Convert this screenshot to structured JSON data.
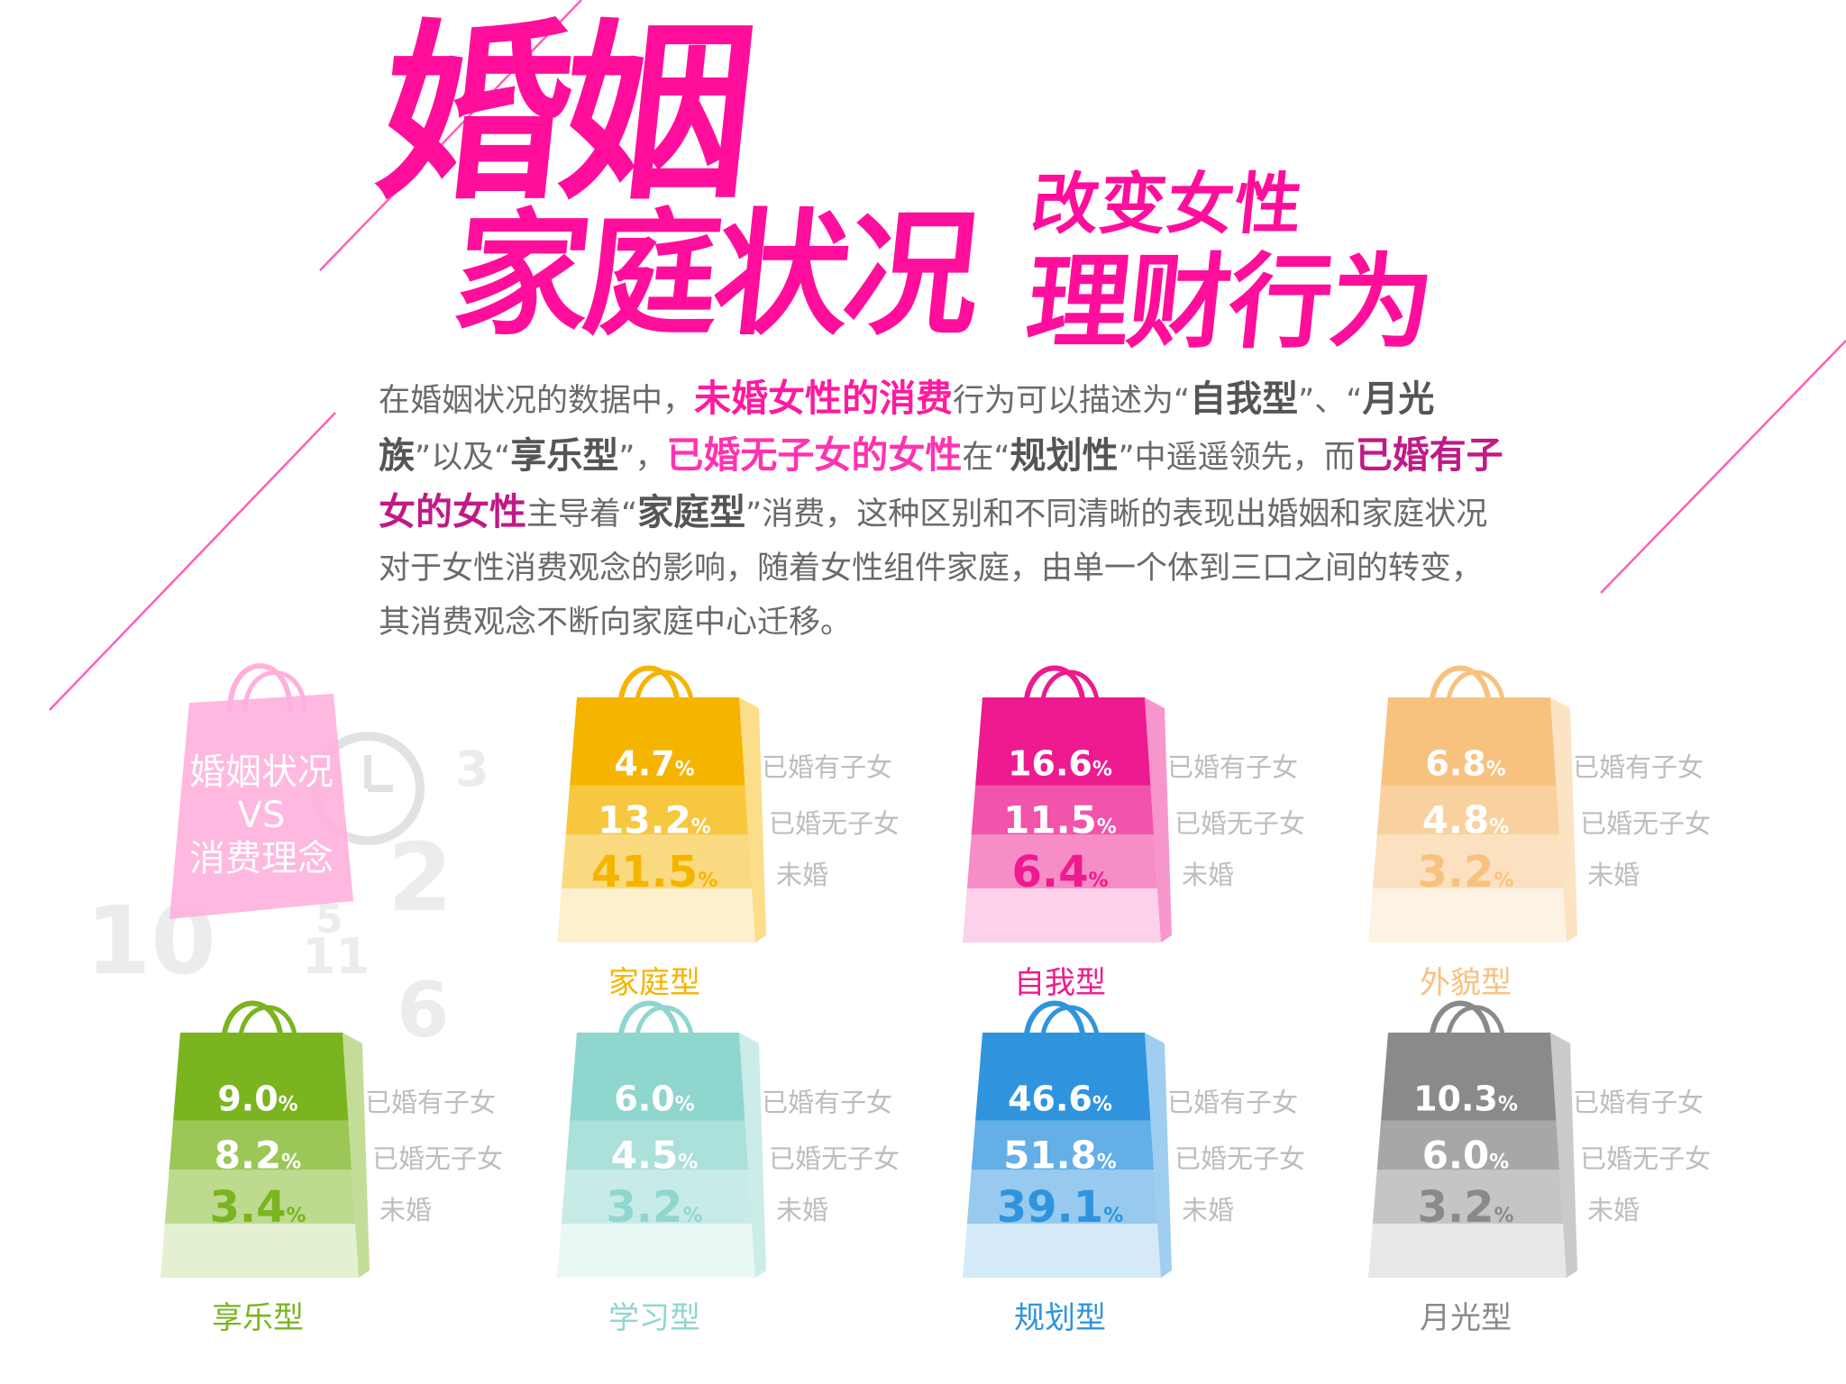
{
  "title": {
    "line1": "婚姻",
    "line2": "家庭状况",
    "line3_small": "改变女性",
    "line3": "理财行为"
  },
  "paragraph": [
    {
      "t": "在婚姻状况的数据中，",
      "s": "plain"
    },
    {
      "t": "未婚女性的消费",
      "s": "pink"
    },
    {
      "t": "行为可以描述为“",
      "s": "plain"
    },
    {
      "t": "自我型",
      "s": "gray"
    },
    {
      "t": "”、“",
      "s": "plain"
    },
    {
      "t": "月光族",
      "s": "gray"
    },
    {
      "t": "”以及“",
      "s": "plain"
    },
    {
      "t": "享乐型",
      "s": "gray"
    },
    {
      "t": "”，",
      "s": "plain"
    },
    {
      "t": "已婚无子女的女性",
      "s": "pink2"
    },
    {
      "t": "在“",
      "s": "plain"
    },
    {
      "t": "规划性",
      "s": "gray"
    },
    {
      "t": "”中遥遥领先，而",
      "s": "plain"
    },
    {
      "t": "已婚有子女的女性",
      "s": "mag"
    },
    {
      "t": "主导着“",
      "s": "plain"
    },
    {
      "t": "家庭型",
      "s": "gray"
    },
    {
      "t": "”消费，这种区别和不同清晰的表现出婚姻和家庭状况对于女性消费观念的影响，随着女性组件家庭，由单一个体到三口之间的转变，其消费观念不断向家庭中心迁移。",
      "s": "plain"
    }
  ],
  "legend_bag": {
    "line1": "婚姻状况",
    "line2": "VS",
    "line3": "消费理念",
    "clock_digits": [
      "3",
      "2",
      "10",
      "5",
      "11",
      "6"
    ]
  },
  "percent_sign": "%",
  "chart_data": {
    "type": "bar",
    "title": "",
    "series_names": [
      "已婚有子女",
      "已婚无子女",
      "未婚"
    ],
    "categories": [
      "家庭型",
      "自我型",
      "外貌型",
      "享乐型",
      "学习型",
      "规划型",
      "月光型"
    ],
    "series": [
      {
        "name": "已婚有子女",
        "values": [
          4.7,
          16.6,
          6.8,
          9.0,
          6.0,
          46.6,
          10.3
        ]
      },
      {
        "name": "已婚无子女",
        "values": [
          13.2,
          11.5,
          4.8,
          8.2,
          4.5,
          51.8,
          6.0
        ]
      },
      {
        "name": "未婚",
        "values": [
          41.5,
          6.4,
          3.2,
          3.4,
          3.2,
          39.1,
          3.2
        ]
      }
    ],
    "colors": {
      "家庭型": "#f5b400",
      "自我型": "#ee1a8f",
      "外貌型": "#f7c27e",
      "享乐型": "#7ab41f",
      "学习型": "#8fd6cf",
      "规划型": "#2f94dd",
      "月光型": "#8a8a8a"
    },
    "legend_bag_color": "#ffb0dc"
  },
  "colors": {
    "title": "#ff0e9c",
    "text": "#6a6a6a",
    "label_gray": "#b8b8b8"
  }
}
